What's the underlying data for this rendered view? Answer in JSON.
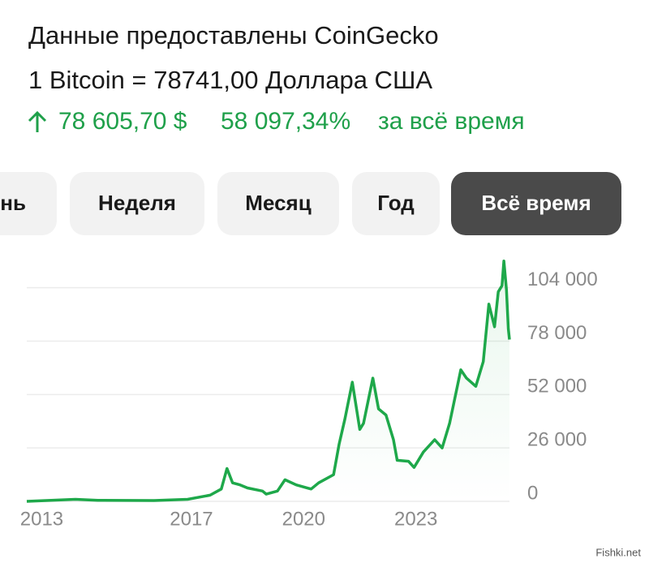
{
  "header": {
    "title": "Данные предоставлены CoinGecko",
    "rate": "1 Bitcoin = 78741,00 Доллара США",
    "change_abs": "78 605,70 $",
    "change_pct": "58 097,34%",
    "period": "за всё время"
  },
  "tabs": [
    {
      "label": "ень"
    },
    {
      "label": "Неделя"
    },
    {
      "label": "Месяц"
    },
    {
      "label": "Год"
    },
    {
      "label": "Всё время",
      "selected": true
    }
  ],
  "chart_data": {
    "type": "line",
    "color": "#1ea84a",
    "grid": true,
    "x": [
      2012.6,
      2013.9,
      2014.5,
      2016.0,
      2016.9,
      2017.5,
      2017.8,
      2017.95,
      2018.1,
      2018.3,
      2018.5,
      2018.9,
      2019.0,
      2019.3,
      2019.5,
      2019.8,
      2020.2,
      2020.4,
      2020.8,
      2020.95,
      2021.1,
      2021.3,
      2021.5,
      2021.6,
      2021.85,
      2022.0,
      2022.2,
      2022.4,
      2022.5,
      2022.8,
      2022.95,
      2023.2,
      2023.5,
      2023.7,
      2023.9,
      2024.2,
      2024.35,
      2024.6,
      2024.8,
      2024.95,
      2025.1,
      2025.2,
      2025.3,
      2025.35,
      2025.42,
      2025.47,
      2025.5
    ],
    "values": [
      0,
      1000,
      500,
      400,
      1000,
      3000,
      6000,
      16000,
      9000,
      8000,
      6500,
      5000,
      3500,
      5000,
      10500,
      8000,
      6000,
      9000,
      13000,
      28000,
      40000,
      58000,
      35000,
      38000,
      60000,
      45000,
      42000,
      30000,
      20000,
      19500,
      16500,
      24000,
      30000,
      26000,
      38000,
      64000,
      60000,
      56000,
      68000,
      96000,
      85000,
      102000,
      105000,
      117000,
      103000,
      84000,
      78741
    ],
    "xlim": [
      2012.6,
      2025.5
    ],
    "xticks": [
      2013,
      2017,
      2020,
      2023
    ],
    "ylim": [
      0,
      124000
    ],
    "yticks": [
      0,
      {
        "value": 26000,
        "label": "26 000"
      },
      {
        "value": 52000,
        "label": "52 000"
      },
      {
        "value": 78000,
        "label": "78 000"
      },
      {
        "value": 104000,
        "label": "104 000"
      }
    ]
  },
  "watermark": "Fishki.net"
}
